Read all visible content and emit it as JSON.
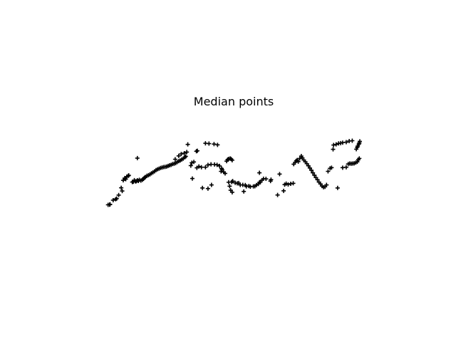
{
  "chart_data": {
    "type": "scatter",
    "title": "Median points",
    "xlabel": "",
    "ylabel": "",
    "axes_visible": false,
    "grid": false,
    "marker": "plus",
    "marker_color": "#000000",
    "xlim": [
      0,
      100
    ],
    "ylim": [
      0,
      100
    ],
    "series": [
      {
        "points": [
          [
            0.2,
            0.5
          ],
          [
            0.8,
            0.7
          ],
          [
            1.0,
            1.1
          ],
          [
            2.2,
            6.3
          ],
          [
            3.2,
            7.5
          ],
          [
            3.6,
            8.3
          ],
          [
            4.4,
            12.7
          ],
          [
            5.8,
            17.8
          ],
          [
            5.4,
            21.8
          ],
          [
            6.2,
            31.2
          ],
          [
            6.8,
            34.0
          ],
          [
            7.2,
            32.6
          ],
          [
            7.6,
            35.8
          ],
          [
            8.2,
            36.8
          ],
          [
            8.4,
            37.4
          ],
          [
            9.8,
            29.0
          ],
          [
            10.2,
            29.4
          ],
          [
            10.6,
            31.4
          ],
          [
            11.0,
            29.8
          ],
          [
            11.4,
            30.0
          ],
          [
            11.8,
            31.2
          ],
          [
            12.2,
            30.4
          ],
          [
            12.6,
            31.8
          ],
          [
            13.2,
            30.8
          ],
          [
            13.8,
            31.8
          ],
          [
            14.2,
            33.0
          ],
          [
            14.6,
            34.4
          ],
          [
            15.0,
            35.4
          ],
          [
            15.6,
            36.8
          ],
          [
            16.2,
            37.6
          ],
          [
            16.8,
            38.6
          ],
          [
            17.4,
            40.0
          ],
          [
            18.0,
            41.2
          ],
          [
            18.6,
            42.4
          ],
          [
            19.2,
            44.0
          ],
          [
            19.8,
            45.0
          ],
          [
            20.4,
            45.8
          ],
          [
            21.0,
            46.6
          ],
          [
            21.6,
            47.2
          ],
          [
            22.2,
            47.8
          ],
          [
            22.8,
            48.0
          ],
          [
            23.4,
            48.4
          ],
          [
            24.0,
            49.2
          ],
          [
            24.6,
            50.0
          ],
          [
            25.2,
            50.6
          ],
          [
            25.8,
            51.6
          ],
          [
            26.4,
            52.0
          ],
          [
            27.0,
            52.8
          ],
          [
            27.6,
            54.0
          ],
          [
            28.2,
            55.2
          ],
          [
            28.8,
            56.0
          ],
          [
            29.4,
            57.2
          ],
          [
            30.0,
            58.4
          ],
          [
            30.6,
            60.0
          ],
          [
            31.0,
            61.2
          ],
          [
            28.2,
            61.8
          ],
          [
            29.2,
            64.2
          ],
          [
            30.4,
            65.2
          ],
          [
            31.4,
            66.6
          ],
          [
            11.8,
            59.0
          ],
          [
            26.8,
            57.6
          ],
          [
            31.8,
            76.2
          ],
          [
            35.2,
            67.6
          ],
          [
            35.6,
            68.2
          ],
          [
            33.0,
            49.6
          ],
          [
            33.4,
            53.2
          ],
          [
            34.2,
            54.2
          ],
          [
            33.6,
            33.4
          ],
          [
            35.4,
            46.8
          ],
          [
            36.2,
            48.6
          ],
          [
            37.2,
            47.6
          ],
          [
            38.8,
            47.6
          ],
          [
            39.8,
            50.4
          ],
          [
            41.0,
            51.2
          ],
          [
            42.4,
            51.0
          ],
          [
            43.4,
            50.6
          ],
          [
            44.4,
            49.2
          ],
          [
            45.2,
            46.0
          ],
          [
            45.4,
            44.6
          ],
          [
            46.0,
            41.6
          ],
          [
            46.6,
            39.8
          ],
          [
            47.2,
            55.2
          ],
          [
            47.6,
            57.2
          ],
          [
            48.0,
            58.0
          ],
          [
            48.6,
            58.6
          ],
          [
            49.0,
            57.8
          ],
          [
            49.4,
            56.4
          ],
          [
            38.8,
            77.6
          ],
          [
            40.2,
            77.2
          ],
          [
            42.2,
            76.6
          ],
          [
            43.6,
            75.6
          ],
          [
            37.6,
            21.6
          ],
          [
            39.8,
            20.8
          ],
          [
            41.2,
            25.4
          ],
          [
            45.0,
            42.4
          ],
          [
            48.0,
            28.8
          ],
          [
            49.6,
            30.2
          ],
          [
            49.2,
            29.0
          ],
          [
            50.6,
            28.0
          ],
          [
            51.4,
            27.4
          ],
          [
            52.0,
            27.8
          ],
          [
            52.6,
            25.4
          ],
          [
            53.6,
            25.4
          ],
          [
            54.6,
            25.2
          ],
          [
            55.0,
            23.6
          ],
          [
            56.0,
            24.0
          ],
          [
            56.6,
            23.2
          ],
          [
            57.8,
            23.6
          ],
          [
            58.4,
            23.8
          ],
          [
            59.0,
            25.2
          ],
          [
            59.8,
            26.6
          ],
          [
            60.2,
            28.6
          ],
          [
            60.6,
            29.0
          ],
          [
            61.2,
            31.4
          ],
          [
            61.8,
            33.2
          ],
          [
            62.8,
            33.0
          ],
          [
            48.4,
            23.8
          ],
          [
            48.8,
            18.8
          ],
          [
            49.4,
            16.2
          ],
          [
            54.0,
            17.2
          ],
          [
            60.2,
            40.6
          ],
          [
            64.6,
            30.2
          ],
          [
            64.8,
            32.0
          ],
          [
            67.4,
            12.8
          ],
          [
            68.2,
            39.0
          ],
          [
            69.8,
            18.0
          ],
          [
            70.2,
            25.8
          ],
          [
            70.8,
            27.0
          ],
          [
            71.6,
            26.0
          ],
          [
            72.6,
            26.8
          ],
          [
            73.6,
            27.4
          ],
          [
            73.8,
            51.4
          ],
          [
            74.4,
            53.8
          ],
          [
            74.8,
            55.6
          ],
          [
            75.2,
            56.6
          ],
          [
            75.6,
            54.6
          ],
          [
            76.2,
            58.6
          ],
          [
            76.8,
            61.6
          ],
          [
            77.2,
            59.4
          ],
          [
            77.8,
            56.6
          ],
          [
            78.4,
            54.4
          ],
          [
            79.0,
            52.0
          ],
          [
            79.6,
            49.4
          ],
          [
            80.2,
            46.6
          ],
          [
            80.8,
            43.8
          ],
          [
            81.4,
            40.6
          ],
          [
            82.0,
            37.6
          ],
          [
            82.6,
            34.6
          ],
          [
            83.2,
            32.0
          ],
          [
            83.8,
            29.0
          ],
          [
            84.4,
            26.6
          ],
          [
            85.0,
            24.0
          ],
          [
            85.6,
            22.6
          ],
          [
            86.2,
            23.0
          ],
          [
            86.8,
            25.4
          ],
          [
            87.4,
            42.4
          ],
          [
            88.2,
            46.2
          ],
          [
            88.8,
            47.0
          ],
          [
            89.4,
            70.0
          ],
          [
            89.6,
            75.4
          ],
          [
            90.6,
            76.2
          ],
          [
            91.6,
            77.4
          ],
          [
            92.4,
            77.8
          ],
          [
            93.2,
            78.4
          ],
          [
            94.6,
            79.0
          ],
          [
            95.8,
            80.4
          ],
          [
            97.0,
            80.8
          ],
          [
            91.2,
            21.6
          ],
          [
            93.2,
            47.0
          ],
          [
            94.6,
            47.6
          ],
          [
            95.4,
            51.6
          ],
          [
            96.0,
            52.2
          ],
          [
            96.6,
            52.0
          ],
          [
            97.2,
            52.2
          ],
          [
            97.8,
            52.4
          ],
          [
            98.4,
            53.4
          ],
          [
            99.0,
            54.4
          ],
          [
            99.4,
            57.0
          ],
          [
            99.8,
            58.6
          ],
          [
            98.6,
            70.2
          ],
          [
            99.0,
            72.6
          ],
          [
            99.2,
            74.2
          ],
          [
            99.6,
            76.4
          ],
          [
            99.8,
            78.0
          ],
          [
            100.0,
            80.0
          ]
        ]
      }
    ]
  }
}
